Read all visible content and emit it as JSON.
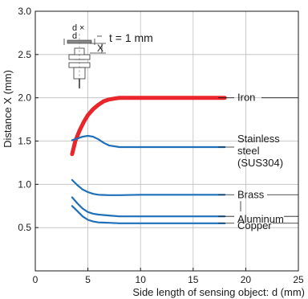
{
  "chart_data": {
    "type": "line",
    "title": "",
    "xlabel": "Side length of sensing object: d (mm)",
    "ylabel": "Distance X (mm)",
    "xlim": [
      0,
      25
    ],
    "ylim": [
      0,
      3.0
    ],
    "x_ticks": [
      0,
      5,
      10,
      15,
      20,
      25
    ],
    "y_ticks": [
      0.5,
      1.0,
      1.5,
      2.0,
      2.5,
      3.0
    ],
    "x_tick_labels": [
      "0",
      "5",
      "10",
      "15",
      "20",
      "25"
    ],
    "y_tick_labels": [
      "0.5",
      "1.0",
      "1.5",
      "2.0",
      "2.5",
      "3.0"
    ],
    "grid": true,
    "annotation": "t = 1 mm",
    "diagram_labels": {
      "d_top": "d",
      "cross": "×",
      "d_bottom": "d",
      "x_label": "X"
    },
    "series": [
      {
        "name": "Iron",
        "color": "#e8262b",
        "x": [
          3.5,
          3.8,
          4.2,
          4.6,
          5.0,
          5.5,
          6.0,
          6.5,
          7.0,
          7.5,
          8.0,
          9.0,
          10.0,
          12.0,
          15.0,
          18.0
        ],
        "y": [
          1.35,
          1.5,
          1.62,
          1.72,
          1.8,
          1.87,
          1.92,
          1.96,
          1.98,
          1.99,
          2.0,
          2.0,
          2.0,
          2.0,
          2.0,
          2.0
        ]
      },
      {
        "name": "Stainless steel (SUS304)",
        "color": "#1e6fba",
        "x": [
          3.5,
          4.0,
          4.5,
          5.0,
          5.5,
          6.0,
          6.5,
          7.0,
          8.0,
          9.0,
          10.0,
          12.0,
          15.0,
          18.0
        ],
        "y": [
          1.51,
          1.53,
          1.55,
          1.56,
          1.55,
          1.52,
          1.48,
          1.45,
          1.43,
          1.43,
          1.43,
          1.43,
          1.43,
          1.43
        ]
      },
      {
        "name": "Brass",
        "color": "#1e6fba",
        "x": [
          3.5,
          4.0,
          4.5,
          5.0,
          5.5,
          6.0,
          7.0,
          8.0,
          10.0,
          12.0,
          15.0,
          18.0
        ],
        "y": [
          1.05,
          0.99,
          0.94,
          0.91,
          0.89,
          0.88,
          0.875,
          0.875,
          0.88,
          0.88,
          0.88,
          0.88
        ]
      },
      {
        "name": "Aluminum",
        "color": "#1e6fba",
        "x": [
          3.5,
          4.0,
          4.5,
          5.0,
          5.5,
          6.0,
          7.0,
          8.0,
          10.0,
          12.0,
          15.0,
          18.0
        ],
        "y": [
          0.85,
          0.78,
          0.72,
          0.68,
          0.66,
          0.65,
          0.64,
          0.63,
          0.63,
          0.63,
          0.63,
          0.63
        ]
      },
      {
        "name": "Copper",
        "color": "#1e6fba",
        "x": [
          3.5,
          4.0,
          4.5,
          5.0,
          5.5,
          6.0,
          7.0,
          8.0,
          10.0,
          12.0,
          15.0,
          18.0
        ],
        "y": [
          0.75,
          0.69,
          0.63,
          0.59,
          0.57,
          0.56,
          0.555,
          0.55,
          0.55,
          0.55,
          0.55,
          0.55
        ]
      }
    ],
    "legend_labels": [
      {
        "series": 0,
        "lines": [
          "Iron"
        ]
      },
      {
        "series": 1,
        "lines": [
          "Stainless",
          "steel",
          "(SUS304)"
        ]
      },
      {
        "series": 2,
        "lines": [
          "Brass"
        ]
      },
      {
        "series": 3,
        "lines": [
          "Aluminum"
        ]
      },
      {
        "series": 4,
        "lines": [
          "Copper"
        ]
      }
    ]
  }
}
